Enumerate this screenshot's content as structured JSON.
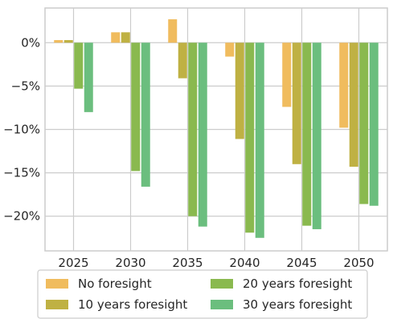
{
  "chart_data": {
    "type": "bar",
    "title": "",
    "xlabel": "",
    "ylabel": "",
    "categories": [
      "2025",
      "2030",
      "2035",
      "2040",
      "2045",
      "2050"
    ],
    "ylim": [
      -24,
      4
    ],
    "yticks": [
      0,
      -5,
      -10,
      -15,
      -20
    ],
    "ytick_labels": [
      "0%",
      "−5%",
      "−10%",
      "−15%",
      "−20%"
    ],
    "grid": true,
    "legend_position": "bottom",
    "series": [
      {
        "name": "No foresight",
        "color": "#F0BC5E",
        "values": [
          0.3,
          1.2,
          2.7,
          -1.6,
          -7.4,
          -9.8
        ]
      },
      {
        "name": "10 years foresight",
        "color": "#BFB143",
        "values": [
          0.3,
          1.2,
          -4.1,
          -11.1,
          -14.0,
          -14.3
        ]
      },
      {
        "name": "20 years foresight",
        "color": "#8AB94F",
        "values": [
          -5.3,
          -14.8,
          -20.0,
          -21.9,
          -21.1,
          -18.6
        ]
      },
      {
        "name": "30 years foresight",
        "color": "#6BBE7E",
        "values": [
          -8.0,
          -16.6,
          -21.2,
          -22.5,
          -21.5,
          -18.8
        ]
      }
    ]
  }
}
